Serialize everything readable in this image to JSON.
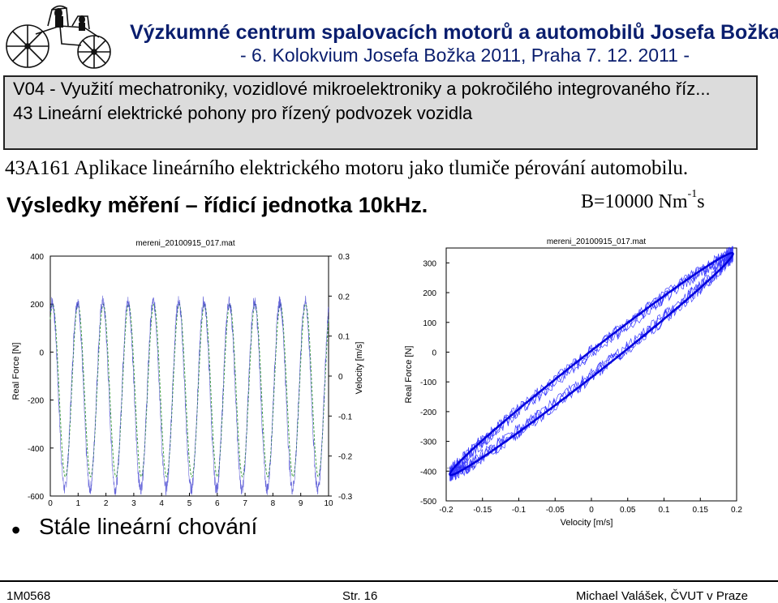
{
  "header": {
    "title": "Výzkumné centrum spalovacích motorů a automobilů Josefa Božka",
    "event": "- 6. Kolokvium Josefa Božka 2011, Praha 7. 12. 2011 -"
  },
  "topic": {
    "line1": "V04 - Využití mechatroniky, vozidlové mikroelektroniky a pokročilého integrovaného říz...",
    "line2": "43 Lineární elektrické pohony pro řízený podvozek vozidla"
  },
  "subtitle": "43A161 Aplikace lineárního elektrického motoru jako tlumiče pérování automobilu.",
  "results_title": "Výsledky měření – řídicí jednotka 10kHz.",
  "b_value": {
    "base": "B=10000 Nm",
    "sup": "-1",
    "unit": "s"
  },
  "bullet": "Stále lineární chování",
  "footer": {
    "left": "1M0568",
    "center": "Str. 16",
    "right": "Michael Valášek, ČVUT v Praze"
  },
  "chart_data": [
    {
      "type": "line",
      "title": "mereni_20100915_017.mat",
      "xlabel": "",
      "ylabel": "Real Force [N]",
      "y2label": "Velocity [m/s]",
      "xlim": [
        0,
        10
      ],
      "ylim": [
        -600,
        400
      ],
      "y2lim": [
        -0.3,
        0.3
      ],
      "x_ticks": [
        "0",
        "1",
        "2",
        "3",
        "4",
        "5",
        "6",
        "7",
        "8",
        "9",
        "10"
      ],
      "y_ticks": [
        "400",
        "200",
        "0",
        "-200",
        "-400",
        "-600"
      ],
      "y2_ticks": [
        "0.3",
        "0.2",
        "0.1",
        "0",
        "-0.1",
        "-0.2",
        "-0.3"
      ],
      "series": [
        {
          "color": "#3333cc",
          "frequency_hz": 1.1,
          "amplitude_n": 390,
          "offset_n": -180
        },
        {
          "color": "#40a040",
          "frequency_hz": 1.1,
          "amplitude_n": 360,
          "offset_n": -160
        }
      ],
      "grid": false
    },
    {
      "type": "scatter",
      "title": "mereni_20100915_017.mat",
      "xlabel": "Velocity [m/s]",
      "ylabel": "Real Force [N]",
      "xlim": [
        -0.2,
        0.2
      ],
      "ylim": [
        -500,
        350
      ],
      "x_ticks": [
        "-0.2",
        "-0.15",
        "-0.1",
        "-0.05",
        "0",
        "0.05",
        "0.1",
        "0.15",
        "0.2"
      ],
      "y_ticks": [
        "300",
        "200",
        "100",
        "0",
        "-100",
        "-200",
        "-300",
        "-400",
        "-500"
      ],
      "slope_n_per_m_s": 1900,
      "velocity_range": [
        -0.195,
        0.195
      ],
      "color": "#1a1aff",
      "grid": false
    }
  ]
}
